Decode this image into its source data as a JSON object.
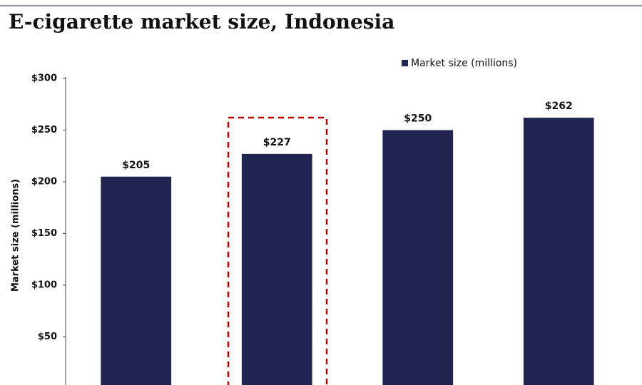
{
  "chart_data": {
    "type": "bar",
    "title": "E-cigarette market size, Indonesia",
    "y_label": "Market size (millions)",
    "categories": [
      null,
      null,
      null,
      null
    ],
    "series": [
      {
        "name": "Market size (millions)",
        "color": "#1f2550",
        "values": [
          205,
          227,
          250,
          262
        ],
        "value_labels": [
          "$205",
          "$227",
          "$250",
          "$262"
        ]
      }
    ],
    "ylim": [
      0,
      300
    ],
    "yticks": [
      {
        "value": 50,
        "label": "$50"
      },
      {
        "value": 100,
        "label": "$100"
      },
      {
        "value": 150,
        "label": "$150"
      },
      {
        "value": 200,
        "label": "$200"
      },
      {
        "value": 250,
        "label": "$250"
      },
      {
        "value": 300,
        "label": "$300"
      }
    ],
    "grid": false,
    "legend": "top-right"
  }
}
